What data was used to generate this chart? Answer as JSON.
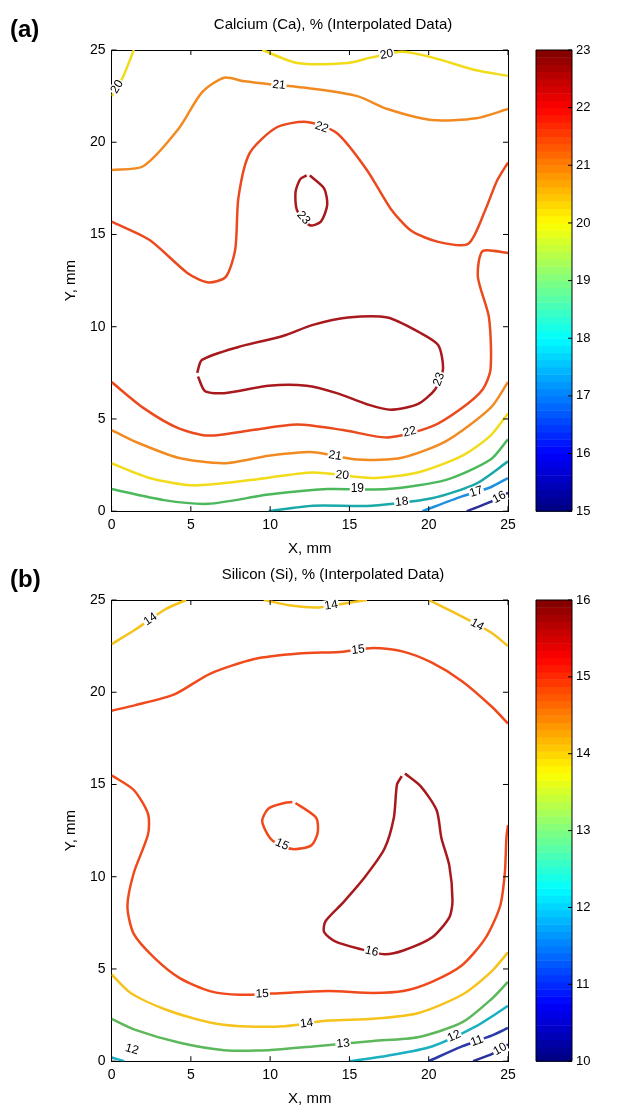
{
  "chart_data": [
    {
      "type": "line",
      "title": "Calcium (Ca), % (Interpolated Data)",
      "xlabel": "X, mm",
      "ylabel": "Y, mm",
      "annotations": [
        "(a)"
      ],
      "xlim": [
        0,
        25
      ],
      "ylim": [
        0,
        25
      ],
      "xticks": [
        0,
        5,
        10,
        15,
        20,
        25
      ],
      "yticks": [
        0,
        5,
        10,
        15,
        20,
        25
      ],
      "grid": false,
      "legend": false,
      "marker": "none",
      "line_style": "solid",
      "clim": [
        15,
        23
      ],
      "cticks": [
        15,
        16,
        17,
        18,
        19,
        20,
        21,
        22,
        23
      ],
      "series": [
        {
          "name": "20",
          "color": "#f2dc1a",
          "x": [
            9.5,
            11.7,
            14.9,
            16.4,
            18.3,
            20.2,
            23.0,
            25
          ],
          "values": [
            25,
            24.3,
            24.3,
            24.6,
            24.9,
            24.6,
            23.9,
            23.6
          ]
        },
        {
          "name": "20",
          "color": "#f2dc1a",
          "x": [
            1.4,
            0.7,
            0
          ],
          "values": [
            25,
            23.5,
            22.5
          ]
        },
        {
          "name": "21",
          "color": "#f28a22",
          "x": [
            0,
            2.0,
            4.2,
            5.7,
            7.1,
            8.4,
            12.7,
            15.5,
            17.4,
            20.2,
            23.0,
            25
          ],
          "values": [
            18.5,
            18.7,
            20.7,
            22.7,
            23.5,
            23.3,
            22.9,
            22.5,
            21.8,
            21.2,
            21.3,
            21.8
          ]
        },
        {
          "name": "22",
          "color": "#ea4a1e",
          "x": [
            0,
            2.4,
            4.8,
            6.1,
            7.2,
            7.8,
            8.0,
            8.7,
            10.4,
            12.3,
            14.2,
            16.1,
            17.6,
            18.9,
            20.6,
            22.5,
            23.6,
            24.3,
            25
          ],
          "values": [
            15.7,
            14.7,
            12.9,
            12.4,
            12.7,
            14.2,
            17.0,
            19.4,
            20.8,
            21.1,
            20.5,
            18.5,
            16.4,
            15.2,
            14.6,
            14.5,
            16.4,
            17.9,
            18.9
          ]
        },
        {
          "name": "22",
          "color": "#ea4a1e",
          "x": [
            25,
            23.4,
            23.1,
            23.8,
            23.9,
            23.4,
            22.1,
            20.2,
            17.4,
            14.6,
            11.7,
            8.9,
            6.1,
            4.2,
            2.0,
            0
          ],
          "values": [
            14.0,
            14.1,
            12.7,
            10.5,
            7.7,
            6.6,
            5.6,
            4.6,
            4.0,
            4.4,
            4.7,
            4.4,
            4.1,
            4.5,
            5.6,
            7.0
          ]
        },
        {
          "name": "23",
          "color": "#a8191d",
          "x": [
            12.5,
            13.4,
            13.6,
            13.2,
            12.5,
            11.7,
            11.6,
            11.9,
            12.3
          ],
          "values": [
            18.2,
            17.5,
            16.6,
            15.7,
            15.5,
            16.3,
            17.3,
            18.0,
            18.2
          ]
        },
        {
          "name": "23",
          "color": "#a8191d",
          "x": [
            5.4,
            5.7,
            8.0,
            10.8,
            12.7,
            14.9,
            17.4,
            19.4,
            20.6,
            20.9,
            20.4,
            19.3,
            17.6,
            16.1,
            14.2,
            12.3,
            9.9,
            7.1,
            5.9,
            5.45
          ],
          "values": [
            7.5,
            8.2,
            8.9,
            9.5,
            10.1,
            10.5,
            10.5,
            9.7,
            9.0,
            7.7,
            6.6,
            5.8,
            5.5,
            5.8,
            6.4,
            6.8,
            6.8,
            6.4,
            6.5,
            7.3
          ]
        },
        {
          "name": "21",
          "color": "#f28a22",
          "x": [
            0,
            1.4,
            4.2,
            7.1,
            9.9,
            12.7,
            15.5,
            18.3,
            21.1,
            23.9,
            25
          ],
          "values": [
            4.4,
            3.8,
            2.9,
            2.6,
            3.0,
            3.2,
            2.8,
            2.9,
            3.8,
            5.6,
            7.0
          ]
        },
        {
          "name": "20",
          "color": "#f2dc1a",
          "x": [
            0,
            2.4,
            5.2,
            8.9,
            12.7,
            16.4,
            19.3,
            22.1,
            23.9,
            25
          ],
          "values": [
            2.6,
            1.8,
            1.4,
            1.7,
            2.1,
            1.8,
            2.1,
            3.0,
            4.1,
            5.3
          ]
        },
        {
          "name": "19",
          "color": "#4cb85c",
          "x": [
            0,
            3.3,
            6.1,
            9.9,
            13.6,
            17.4,
            21.1,
            23.9,
            25
          ],
          "values": [
            1.2,
            0.6,
            0.4,
            0.9,
            1.2,
            1.2,
            1.7,
            2.8,
            3.9
          ]
        },
        {
          "name": "18",
          "color": "#1ba8a8",
          "x": [
            9.9,
            12.7,
            16.4,
            20.2,
            23.0,
            25
          ],
          "values": [
            0,
            0.3,
            0.3,
            0.7,
            1.5,
            2.7
          ]
        },
        {
          "name": "17",
          "color": "#1e90e0",
          "x": [
            19.6,
            22.1,
            23.9,
            25
          ],
          "values": [
            0,
            0.8,
            1.3,
            1.8
          ]
        },
        {
          "name": "16",
          "color": "#2b2f9a",
          "x": [
            22.4,
            23.9,
            25
          ],
          "values": [
            0,
            0.5,
            1.0
          ]
        }
      ]
    },
    {
      "type": "line",
      "title": "Silicon (Si), % (Interpolated Data)",
      "xlabel": "X, mm",
      "ylabel": "Y, mm",
      "annotations": [
        "(b)"
      ],
      "xlim": [
        0,
        25
      ],
      "ylim": [
        0,
        25
      ],
      "xticks": [
        0,
        5,
        10,
        15,
        20,
        25
      ],
      "yticks": [
        0,
        5,
        10,
        15,
        20,
        25
      ],
      "grid": false,
      "legend": false,
      "marker": "none",
      "line_style": "solid",
      "clim": [
        10,
        16
      ],
      "cticks": [
        10,
        11,
        12,
        13,
        14,
        15,
        16
      ],
      "series": [
        {
          "name": "14",
          "color": "#f5c31b",
          "x": [
            0,
            1.5,
            3.4,
            4.7
          ],
          "values": [
            22.6,
            23.4,
            24.5,
            25
          ]
        },
        {
          "name": "14",
          "color": "#f5c31b",
          "x": [
            9.6,
            11.3,
            13.1,
            14.6,
            16.1
          ],
          "values": [
            25,
            24.7,
            24.6,
            24.8,
            25
          ]
        },
        {
          "name": "14",
          "color": "#f5c31b",
          "x": [
            20.0,
            22.1,
            24.0,
            25
          ],
          "values": [
            25,
            24.1,
            23.2,
            22.5
          ]
        },
        {
          "name": "15",
          "color": "#f04a1c",
          "x": [
            0,
            1.5,
            4.0,
            6.2,
            9.0,
            11.8,
            14.6,
            16.5,
            18.4,
            20.2,
            22.1,
            24.0,
            25
          ],
          "values": [
            19.0,
            19.3,
            19.9,
            21.0,
            21.8,
            22.1,
            22.2,
            22.4,
            22.2,
            21.6,
            20.6,
            19.2,
            18.3
          ]
        },
        {
          "name": "15",
          "color": "#f04a1c",
          "x": [
            11.6,
            12.9,
            13.0,
            12.6,
            11.4,
            10.1,
            9.5,
            9.9,
            10.9,
            11.4
          ],
          "values": [
            14.0,
            13.2,
            12.4,
            11.7,
            11.5,
            12.0,
            13.0,
            13.7,
            14.0,
            14.05
          ]
        },
        {
          "name": "15",
          "color": "#f04a1c",
          "x": [
            0,
            1.4,
            2.3,
            2.3,
            1.4,
            1.0,
            1.4,
            2.7,
            4.3,
            6.2,
            8.1,
            10.9,
            13.7,
            16.5,
            18.4,
            20.2,
            22.1,
            23.6,
            24.5,
            24.8,
            24.9,
            25
          ],
          "values": [
            15.5,
            14.7,
            13.4,
            12.3,
            10.2,
            8.4,
            6.9,
            5.6,
            4.5,
            3.8,
            3.6,
            3.7,
            3.8,
            3.7,
            3.8,
            4.3,
            5.2,
            6.7,
            8.4,
            10.2,
            12.1,
            12.8
          ]
        },
        {
          "name": "16",
          "color": "#a8191d",
          "x": [
            18.5,
            19.5,
            20.5,
            20.8,
            21.3,
            21.5,
            21.3,
            20.2,
            18.4,
            17.2,
            15.6,
            14.1,
            13.4,
            13.5,
            14.6,
            15.9,
            17.2,
            17.8,
            18.0,
            18.3
          ],
          "values": [
            15.6,
            14.9,
            13.6,
            12.1,
            10.6,
            8.7,
            7.8,
            6.7,
            6.0,
            5.8,
            6.1,
            6.5,
            7.0,
            7.6,
            8.6,
            9.9,
            11.5,
            13.2,
            15.0,
            15.45
          ]
        },
        {
          "name": "14",
          "color": "#f5c31b",
          "x": [
            0,
            1.2,
            3.4,
            6.2,
            8.1,
            10.9,
            13.7,
            16.5,
            19.3,
            22.1,
            24.0,
            25
          ],
          "values": [
            4.7,
            3.7,
            2.8,
            2.1,
            1.9,
            1.9,
            2.2,
            2.3,
            2.6,
            3.6,
            4.9,
            5.9
          ]
        },
        {
          "name": "13",
          "color": "#5cb85a",
          "x": [
            0,
            1.5,
            4.3,
            7.1,
            9.9,
            12.7,
            16.5,
            19.3,
            22.1,
            24.0,
            25
          ],
          "values": [
            2.3,
            1.7,
            1.0,
            0.6,
            0.6,
            0.8,
            1.1,
            1.3,
            2.1,
            3.4,
            4.3
          ]
        },
        {
          "name": "12",
          "color": "#1ab0c0",
          "x": [
            0,
            0.8
          ],
          "values": [
            0.2,
            0
          ]
        },
        {
          "name": "12",
          "color": "#1ab0c0",
          "x": [
            15.0,
            17.4,
            20.2,
            23.0,
            25
          ],
          "values": [
            0,
            0.3,
            0.8,
            1.9,
            3.0
          ]
        },
        {
          "name": "11",
          "color": "#2a3aa8",
          "x": [
            20.0,
            22.1,
            24.0,
            25
          ],
          "values": [
            0,
            0.8,
            1.4,
            1.8
          ]
        },
        {
          "name": "10",
          "color": "#2b2f9a",
          "x": [
            22.8,
            24.0,
            25
          ],
          "values": [
            0,
            0.4,
            0.9
          ]
        }
      ]
    }
  ]
}
